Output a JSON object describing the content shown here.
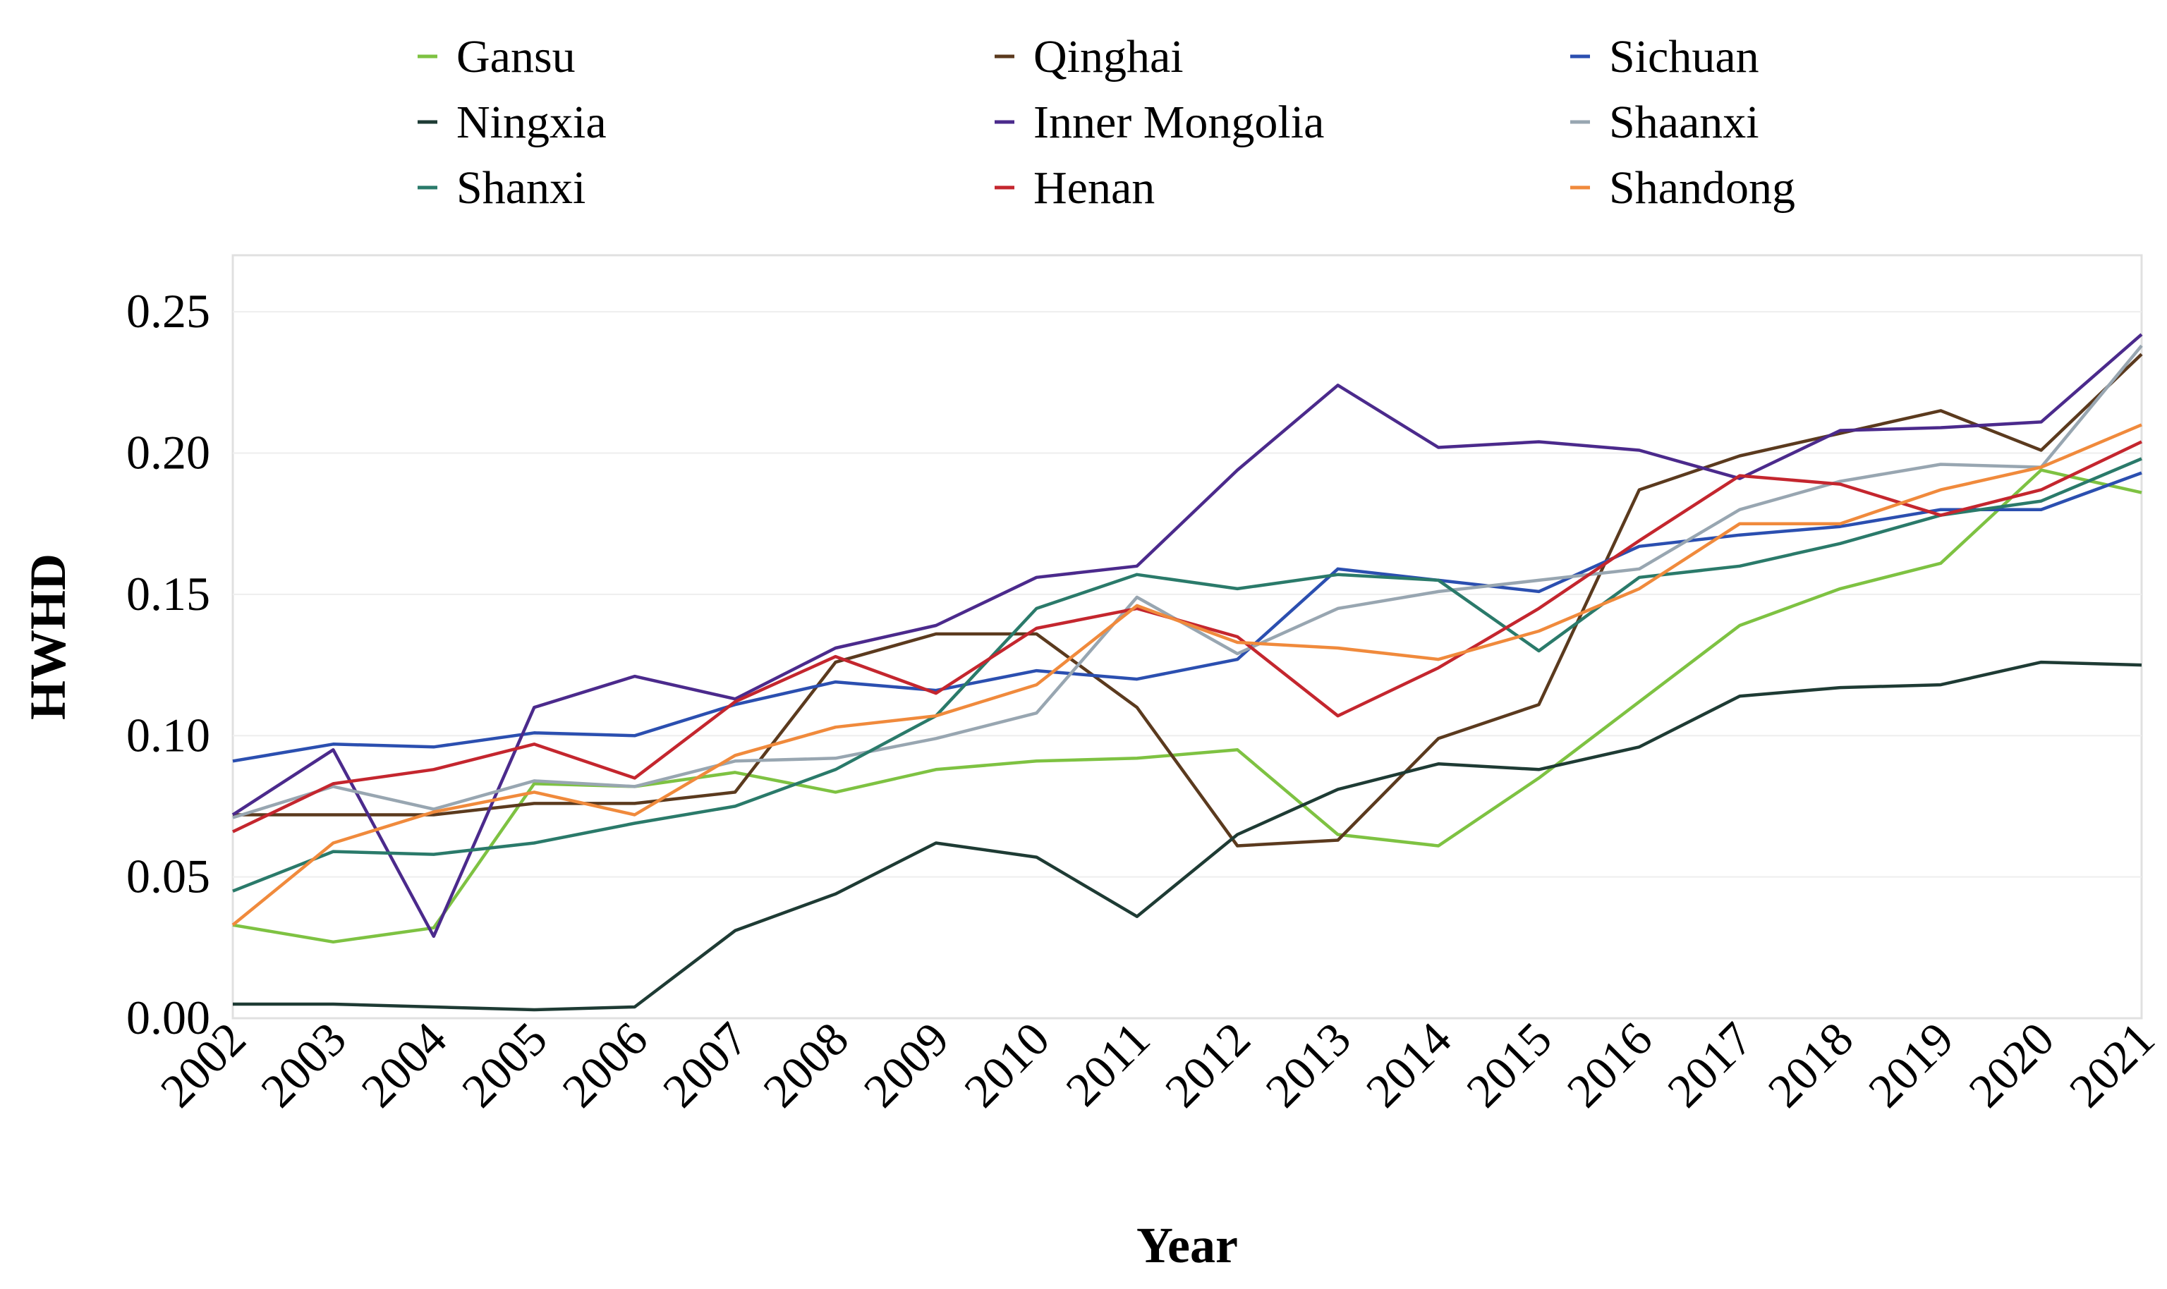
{
  "chart_data": {
    "type": "line",
    "title": "",
    "xlabel": "Year",
    "ylabel": "HWHD",
    "ylim": [
      0,
      0.27
    ],
    "yticks": [
      "0.00",
      "0.05",
      "0.10",
      "0.15",
      "0.20",
      "0.25"
    ],
    "categories": [
      "2002",
      "2003",
      "2004",
      "2005",
      "2006",
      "2007",
      "2008",
      "2009",
      "2010",
      "2011",
      "2012",
      "2013",
      "2014",
      "2015",
      "2016",
      "2017",
      "2018",
      "2019",
      "2020",
      "2021"
    ],
    "legend_position": "top",
    "grid": "horizontal",
    "series": [
      {
        "name": "Gansu",
        "color": "#7ec242",
        "values": [
          0.033,
          0.027,
          0.032,
          0.083,
          0.082,
          0.087,
          0.08,
          0.088,
          0.091,
          0.092,
          0.095,
          0.065,
          0.061,
          0.085,
          0.112,
          0.139,
          0.152,
          0.161,
          0.194,
          0.186
        ]
      },
      {
        "name": "Qinghai",
        "color": "#5b3a1e",
        "values": [
          0.072,
          0.072,
          0.072,
          0.076,
          0.076,
          0.08,
          0.126,
          0.136,
          0.136,
          0.11,
          0.061,
          0.063,
          0.099,
          0.111,
          0.187,
          0.199,
          0.207,
          0.215,
          0.201,
          0.235
        ]
      },
      {
        "name": "Sichuan",
        "color": "#2b4fb0",
        "values": [
          0.091,
          0.097,
          0.096,
          0.101,
          0.1,
          0.111,
          0.119,
          0.116,
          0.123,
          0.12,
          0.127,
          0.159,
          0.155,
          0.151,
          0.167,
          0.171,
          0.174,
          0.18,
          0.18,
          0.193
        ]
      },
      {
        "name": "Ningxia",
        "color": "#1e3b34",
        "values": [
          0.005,
          0.005,
          0.004,
          0.003,
          0.004,
          0.031,
          0.044,
          0.062,
          0.057,
          0.036,
          0.065,
          0.081,
          0.09,
          0.088,
          0.096,
          0.114,
          0.117,
          0.118,
          0.126,
          0.125
        ]
      },
      {
        "name": "Inner Mongolia",
        "color": "#4b2a8c",
        "values": [
          0.072,
          0.095,
          0.029,
          0.11,
          0.121,
          0.113,
          0.131,
          0.139,
          0.156,
          0.16,
          0.194,
          0.224,
          0.202,
          0.204,
          0.201,
          0.191,
          0.208,
          0.209,
          0.211,
          0.242
        ]
      },
      {
        "name": "Shaanxi",
        "color": "#98a6b1",
        "values": [
          0.071,
          0.082,
          0.074,
          0.084,
          0.082,
          0.091,
          0.092,
          0.099,
          0.108,
          0.149,
          0.129,
          0.145,
          0.151,
          0.155,
          0.159,
          0.18,
          0.19,
          0.196,
          0.195,
          0.238
        ]
      },
      {
        "name": "Shanxi",
        "color": "#2a7a6a",
        "values": [
          0.045,
          0.059,
          0.058,
          0.062,
          0.069,
          0.075,
          0.088,
          0.107,
          0.145,
          0.157,
          0.152,
          0.157,
          0.155,
          0.13,
          0.156,
          0.16,
          0.168,
          0.178,
          0.183,
          0.198
        ]
      },
      {
        "name": "Henan",
        "color": "#c4262e",
        "values": [
          0.066,
          0.083,
          0.088,
          0.097,
          0.085,
          0.112,
          0.128,
          0.115,
          0.138,
          0.145,
          0.135,
          0.107,
          0.124,
          0.145,
          0.169,
          0.192,
          0.189,
          0.178,
          0.187,
          0.204
        ]
      },
      {
        "name": "Shandong",
        "color": "#f08a3c",
        "values": [
          0.033,
          0.062,
          0.073,
          0.08,
          0.072,
          0.093,
          0.103,
          0.107,
          0.118,
          0.146,
          0.133,
          0.131,
          0.127,
          0.137,
          0.152,
          0.175,
          0.175,
          0.187,
          0.195,
          0.21
        ]
      }
    ]
  }
}
